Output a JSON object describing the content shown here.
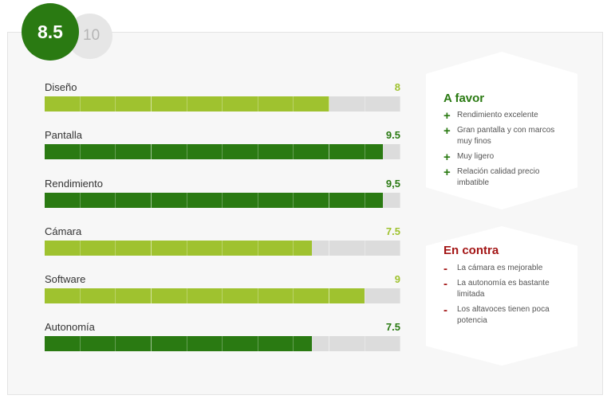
{
  "score": {
    "value": "8.5",
    "max": "10",
    "main_color": "#2a7a12"
  },
  "colors": {
    "light": "#9fc22f",
    "dark": "#2a7a12",
    "track": "#dcdcdc"
  },
  "ratings": [
    {
      "label": "Diseño",
      "value_text": "8",
      "fraction": 0.8,
      "style": "light"
    },
    {
      "label": "Pantalla",
      "value_text": "9.5",
      "fraction": 0.95,
      "style": "dark"
    },
    {
      "label": "Rendimiento",
      "value_text": "9,5",
      "fraction": 0.95,
      "style": "dark"
    },
    {
      "label": "Cámara",
      "value_text": "7.5",
      "fraction": 0.75,
      "style": "light"
    },
    {
      "label": "Software",
      "value_text": "9",
      "fraction": 0.9,
      "style": "light"
    },
    {
      "label": "Autonomía",
      "value_text": "7.5",
      "fraction": 0.75,
      "style": "dark"
    }
  ],
  "pros": {
    "title": "A favor",
    "mark": "+",
    "items": [
      "Rendimiento excelente",
      "Gran pantalla y con marcos muy finos",
      "Muy ligero",
      "Relación calidad precio imbatible"
    ]
  },
  "cons": {
    "title": "En contra",
    "mark": "-",
    "items": [
      "La cámara es mejorable",
      "La autonomía es bastante limitada",
      "Los altavoces tienen poca potencia"
    ]
  }
}
